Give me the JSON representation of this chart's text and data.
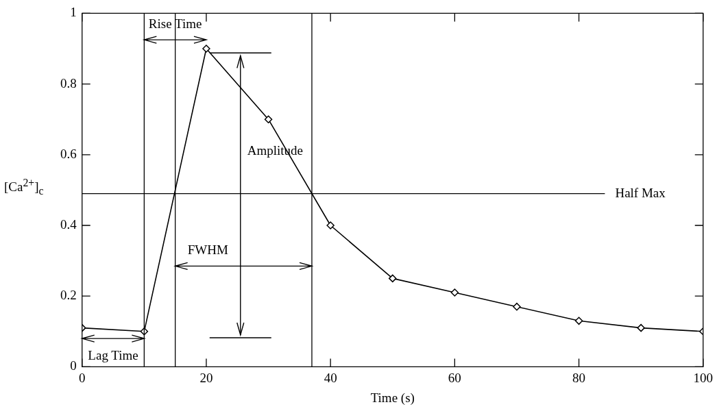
{
  "chart_data": {
    "type": "line",
    "xlabel": "Time (s)",
    "ylabel": "[Ca$^{2+}$]$_{c}$",
    "x": [
      0,
      10,
      20,
      30,
      40,
      50,
      60,
      70,
      80,
      90,
      100
    ],
    "series": [
      {
        "color": "#000000",
        "values": [
          0.11,
          0.1,
          0.9,
          0.7,
          0.4,
          0.25,
          0.21,
          0.17,
          0.13,
          0.11,
          0.1
        ]
      }
    ],
    "xlim": [
      0,
      100
    ],
    "xticks": [
      0,
      20,
      40,
      60,
      80,
      100
    ],
    "ylim": [
      0,
      1
    ],
    "yticks": [
      0,
      0.2,
      0.4,
      0.6,
      0.8,
      1
    ],
    "marker": "diamond",
    "line_style": "solid",
    "grid": false,
    "legend": false,
    "ref_lines": [
      {
        "axis": "y",
        "value": 0.49,
        "label": "Half Max",
        "color": "#000000"
      },
      {
        "axis": "x",
        "value": 10,
        "color": "#000000"
      },
      {
        "axis": "x",
        "value": 15,
        "color": "#000000"
      },
      {
        "axis": "x",
        "value": 37,
        "color": "#000000"
      }
    ],
    "annotations": [
      {
        "text": "Rise Time",
        "x": 10,
        "y": 0.925
      },
      {
        "text": "Lag Time",
        "x": 10,
        "y": 0.08
      },
      {
        "text": "FWHM",
        "x": 37,
        "y": 0.285
      },
      {
        "text": "Amplitude",
        "x": 25.5,
        "y": 0.49
      }
    ]
  }
}
